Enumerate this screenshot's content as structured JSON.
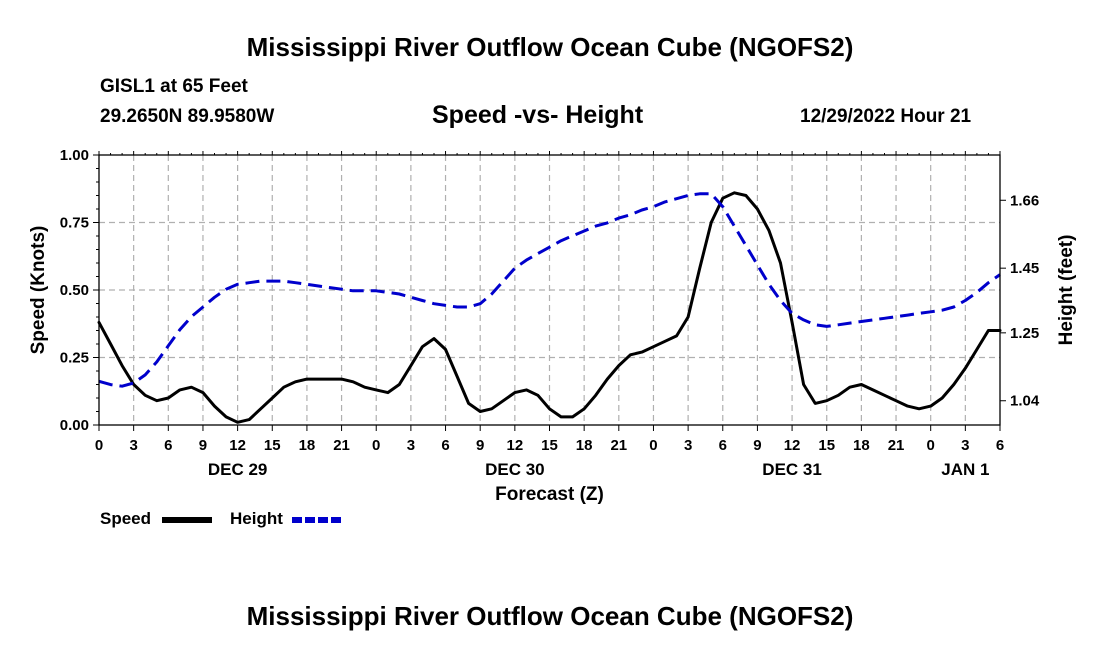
{
  "header": {
    "title": "Mississippi River Outflow Ocean Cube (NGOFS2)",
    "station": "GISL1 at 65 Feet",
    "coords": "29.2650N  89.9580W",
    "subtitle": "Speed -vs- Height",
    "datetime": "12/29/2022 Hour 21"
  },
  "legend": {
    "speed_label": "Speed",
    "height_label": "Height"
  },
  "footer": {
    "title": "Mississippi River Outflow Ocean Cube (NGOFS2)"
  },
  "chart_data": {
    "type": "line",
    "title": "Speed -vs- Height",
    "xlabel": "Forecast (Z)",
    "ylabel": "Speed (Knots)",
    "y2label": "Height (feet)",
    "x_hours_range": [
      0,
      78
    ],
    "x_tick_labels": [
      "0",
      "3",
      "6",
      "9",
      "12",
      "15",
      "18",
      "21",
      "0",
      "3",
      "6",
      "9",
      "12",
      "15",
      "18",
      "21",
      "0",
      "3",
      "6",
      "9",
      "12",
      "15",
      "18",
      "21",
      "0",
      "3",
      "6"
    ],
    "date_labels": [
      {
        "label": "DEC 29",
        "hour": 12
      },
      {
        "label": "DEC 30",
        "hour": 36
      },
      {
        "label": "DEC 31",
        "hour": 60
      },
      {
        "label": "JAN 1",
        "hour": 75
      }
    ],
    "ylim": [
      0,
      1.0
    ],
    "y_ticks": [
      "0.00",
      "0.25",
      "0.50",
      "0.75",
      "1.00"
    ],
    "y2_ticks": [
      {
        "label": "1.04",
        "value": 1.04
      },
      {
        "label": "1.25",
        "value": 1.25
      },
      {
        "label": "1.45",
        "value": 1.45
      },
      {
        "label": "1.66",
        "value": 1.66
      }
    ],
    "y2_map": {
      "speed_at": [
        0.0,
        1.0
      ],
      "height_at": [
        0.965,
        1.8
      ]
    },
    "grid": true,
    "series": [
      {
        "name": "Speed",
        "color": "#000000",
        "style": "solid",
        "axis": "left",
        "x": [
          0,
          1,
          2,
          3,
          4,
          5,
          6,
          7,
          8,
          9,
          10,
          11,
          12,
          13,
          14,
          15,
          16,
          17,
          18,
          19,
          20,
          21,
          22,
          23,
          24,
          25,
          26,
          27,
          28,
          29,
          30,
          31,
          32,
          33,
          34,
          35,
          36,
          37,
          38,
          39,
          40,
          41,
          42,
          43,
          44,
          45,
          46,
          47,
          48,
          49,
          50,
          51,
          52,
          53,
          54,
          55,
          56,
          57,
          58,
          59,
          60,
          61,
          62,
          63,
          64,
          65,
          66,
          67,
          68,
          69,
          70,
          71,
          72,
          73,
          74,
          75,
          76,
          77,
          78
        ],
        "values": [
          0.38,
          0.3,
          0.22,
          0.15,
          0.11,
          0.09,
          0.1,
          0.13,
          0.14,
          0.12,
          0.07,
          0.03,
          0.01,
          0.02,
          0.06,
          0.1,
          0.14,
          0.16,
          0.17,
          0.17,
          0.17,
          0.17,
          0.16,
          0.14,
          0.13,
          0.12,
          0.15,
          0.22,
          0.29,
          0.32,
          0.28,
          0.18,
          0.08,
          0.05,
          0.06,
          0.09,
          0.12,
          0.13,
          0.11,
          0.06,
          0.03,
          0.03,
          0.06,
          0.11,
          0.17,
          0.22,
          0.26,
          0.27,
          0.29,
          0.31,
          0.33,
          0.4,
          0.58,
          0.75,
          0.84,
          0.86,
          0.85,
          0.8,
          0.72,
          0.6,
          0.38,
          0.15,
          0.08,
          0.09,
          0.11,
          0.14,
          0.15,
          0.13,
          0.11,
          0.09,
          0.07,
          0.06,
          0.07,
          0.1,
          0.15,
          0.21,
          0.28,
          0.35,
          0.35
        ]
      },
      {
        "name": "Height",
        "color": "#0000cc",
        "style": "dashed",
        "axis": "right",
        "x": [
          0,
          1,
          2,
          3,
          4,
          5,
          6,
          7,
          8,
          9,
          10,
          11,
          12,
          13,
          14,
          15,
          16,
          17,
          18,
          19,
          20,
          21,
          22,
          23,
          24,
          25,
          26,
          27,
          28,
          29,
          30,
          31,
          32,
          33,
          34,
          35,
          36,
          37,
          38,
          39,
          40,
          41,
          42,
          43,
          44,
          45,
          46,
          47,
          48,
          49,
          50,
          51,
          52,
          53,
          54,
          55,
          56,
          57,
          58,
          59,
          60,
          61,
          62,
          63,
          64,
          65,
          66,
          67,
          68,
          69,
          70,
          71,
          72,
          73,
          74,
          75,
          76,
          77,
          78
        ],
        "values": [
          1.1,
          1.09,
          1.085,
          1.095,
          1.12,
          1.16,
          1.21,
          1.26,
          1.3,
          1.33,
          1.36,
          1.385,
          1.4,
          1.405,
          1.41,
          1.41,
          1.41,
          1.405,
          1.4,
          1.395,
          1.39,
          1.385,
          1.38,
          1.38,
          1.38,
          1.375,
          1.37,
          1.36,
          1.35,
          1.34,
          1.335,
          1.33,
          1.33,
          1.34,
          1.37,
          1.41,
          1.45,
          1.475,
          1.495,
          1.515,
          1.535,
          1.55,
          1.565,
          1.58,
          1.59,
          1.605,
          1.615,
          1.63,
          1.64,
          1.655,
          1.665,
          1.675,
          1.68,
          1.68,
          1.64,
          1.58,
          1.52,
          1.46,
          1.4,
          1.35,
          1.31,
          1.29,
          1.275,
          1.27,
          1.275,
          1.28,
          1.285,
          1.29,
          1.295,
          1.3,
          1.305,
          1.31,
          1.315,
          1.32,
          1.33,
          1.35,
          1.375,
          1.405,
          1.43
        ]
      }
    ]
  }
}
